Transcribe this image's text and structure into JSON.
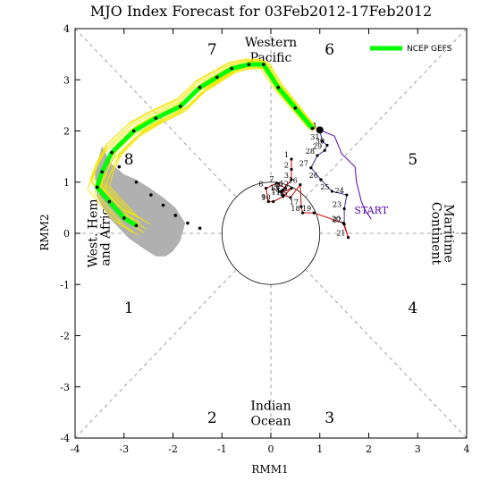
{
  "chart_data": {
    "type": "line",
    "title": "MJO Index Forecast for 03Feb2012-17Feb2012",
    "xlabel": "RMM1",
    "ylabel": "RMM2",
    "xlim": [
      -4,
      4
    ],
    "ylim": [
      -4,
      4
    ],
    "xticks": [
      "-4",
      "-3",
      "-2",
      "-1",
      "0",
      "1",
      "2",
      "3",
      "4"
    ],
    "yticks": [
      "-4",
      "-3",
      "-2",
      "-1",
      "0",
      "1",
      "2",
      "3",
      "4"
    ],
    "phases": [
      {
        "label": "1",
        "x": -2.9,
        "y": -1.45
      },
      {
        "label": "2",
        "x": -1.2,
        "y": -3.6
      },
      {
        "label": "3",
        "x": 1.2,
        "y": -3.6
      },
      {
        "label": "4",
        "x": 2.9,
        "y": -1.45
      },
      {
        "label": "5",
        "x": 2.9,
        "y": 1.45
      },
      {
        "label": "6",
        "x": 1.2,
        "y": 3.6
      },
      {
        "label": "7",
        "x": -1.2,
        "y": 3.6
      },
      {
        "label": "8",
        "x": -2.9,
        "y": 1.45
      }
    ],
    "regions": {
      "western_pacific": [
        "Western",
        "Pacific"
      ],
      "maritime_continent": [
        "Maritime",
        "Continent"
      ],
      "indian_ocean": [
        "Indian",
        "Ocean"
      ],
      "west_hem_africa": [
        "West. Hem",
        "and Africa"
      ]
    },
    "legend": {
      "label": "NCEP GEFS",
      "color": "#00ff00",
      "position": "top-right"
    },
    "start_label": "START",
    "observed": {
      "labels_before_start": [
        "1",
        "2",
        "3",
        "4",
        "5",
        "6",
        "7",
        "8",
        "9",
        "10",
        "11",
        "12",
        "13",
        "14",
        "15",
        "16",
        "17",
        "18",
        "19",
        "20",
        "21",
        "22",
        "23",
        "24",
        "25",
        "26",
        "27",
        "28",
        "29",
        "30",
        "31",
        "1"
      ],
      "points": [
        {
          "label": "1",
          "x": 0.42,
          "y": 1.45
        },
        {
          "label": "2",
          "x": 0.42,
          "y": 1.25
        },
        {
          "label": "3",
          "x": 0.42,
          "y": 1.05
        },
        {
          "label": "4",
          "x": 0.25,
          "y": 0.85
        },
        {
          "label": "5",
          "x": 0.2,
          "y": 0.82
        },
        {
          "label": "6",
          "x": 0.3,
          "y": 0.88
        },
        {
          "label": "7",
          "x": 0.12,
          "y": 0.98
        },
        {
          "label": "8",
          "x": -0.1,
          "y": 0.88
        },
        {
          "label": "9",
          "x": -0.05,
          "y": 0.62
        },
        {
          "label": "10",
          "x": 0.05,
          "y": 0.62
        },
        {
          "label": "11",
          "x": 0.25,
          "y": 0.72
        },
        {
          "label": "12",
          "x": 0.42,
          "y": 0.88
        },
        {
          "label": "13",
          "x": 0.22,
          "y": 0.8
        },
        {
          "label": "14",
          "x": 0.25,
          "y": 0.75
        },
        {
          "label": "15",
          "x": 0.4,
          "y": 0.7
        },
        {
          "label": "16",
          "x": 0.6,
          "y": 0.95
        },
        {
          "label": "17",
          "x": 0.62,
          "y": 0.52
        },
        {
          "label": "18",
          "x": 0.65,
          "y": 0.4
        },
        {
          "label": "19",
          "x": 0.88,
          "y": 0.4
        },
        {
          "label": "20",
          "x": 1.48,
          "y": 0.2
        },
        {
          "label": "21",
          "x": 1.58,
          "y": -0.08
        },
        {
          "label": "22",
          "x": 1.5,
          "y": 0.18
        },
        {
          "label": "23",
          "x": 1.5,
          "y": 0.48
        },
        {
          "label": "24",
          "x": 1.55,
          "y": 0.75
        },
        {
          "label": "25",
          "x": 1.25,
          "y": 0.82
        },
        {
          "label": "26",
          "x": 1.02,
          "y": 1.05
        },
        {
          "label": "27",
          "x": 0.82,
          "y": 1.28
        },
        {
          "label": "28",
          "x": 0.95,
          "y": 1.52
        },
        {
          "label": "29",
          "x": 1.1,
          "y": 1.62
        },
        {
          "label": "30",
          "x": 1.15,
          "y": 1.72
        },
        {
          "label": "31",
          "x": 1.05,
          "y": 1.8
        },
        {
          "label": "1",
          "x": 1.0,
          "y": 2.02
        }
      ],
      "red_segment_to": 22,
      "purple_points": [
        {
          "x": 1.0,
          "y": 2.02
        },
        {
          "x": 1.3,
          "y": 1.9
        },
        {
          "x": 1.45,
          "y": 1.55
        },
        {
          "x": 1.72,
          "y": 1.3
        },
        {
          "x": 1.75,
          "y": 1.0
        },
        {
          "x": 1.85,
          "y": 0.62
        },
        {
          "x": 1.92,
          "y": 0.46
        },
        {
          "x": 2.05,
          "y": 0.28
        }
      ]
    },
    "ensemble_mean": {
      "series_color": "#00ff00",
      "x": [
        0.85,
        0.5,
        0.15,
        -0.15,
        -0.45,
        -0.8,
        -1.1,
        -1.45,
        -1.85,
        -2.35,
        -2.8,
        -3.25,
        -3.45,
        -3.55,
        -3.3,
        -3.0,
        -2.75
      ],
      "y": [
        2.05,
        2.45,
        2.85,
        3.3,
        3.3,
        3.22,
        3.05,
        2.85,
        2.48,
        2.25,
        2.0,
        1.58,
        1.2,
        0.9,
        0.62,
        0.3,
        0.15
      ]
    },
    "forecast_dots": {
      "x": [
        -3.1,
        -2.75,
        -2.45,
        -2.2,
        -1.95,
        -1.7,
        -1.45
      ],
      "y": [
        1.3,
        1.0,
        0.75,
        0.55,
        0.35,
        0.2,
        0.1
      ]
    },
    "gray_band_outer": {
      "x": [
        -3.45,
        -3.6,
        -3.55,
        -3.3,
        -2.9,
        -2.6,
        -2.35,
        -2.15,
        -2.0,
        -1.85,
        -1.75,
        -1.95,
        -2.2,
        -2.5,
        -2.75,
        -3.0,
        -3.25,
        -3.45
      ],
      "y": [
        1.7,
        1.2,
        0.7,
        0.3,
        -0.1,
        -0.3,
        -0.45,
        -0.45,
        -0.35,
        -0.15,
        0.2,
        0.5,
        0.7,
        0.9,
        1.05,
        1.15,
        1.35,
        1.7
      ]
    }
  }
}
